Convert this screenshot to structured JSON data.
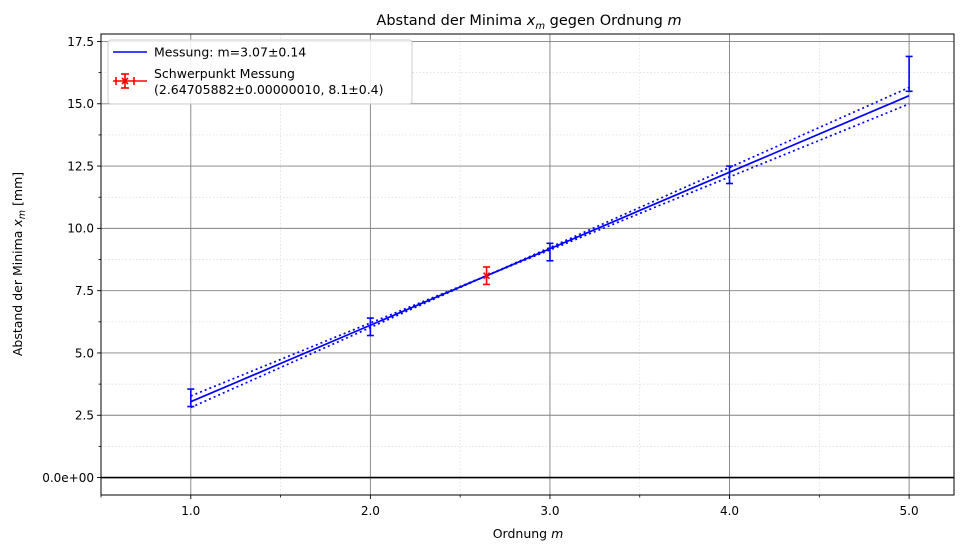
{
  "chart_data": {
    "type": "scatter",
    "title": {
      "main": "Abstand der Minima ",
      "var": "x",
      "sub": "m",
      "rest": " gegen Ordnung ",
      "var2": "m"
    },
    "xlabel": {
      "main": "Ordnung ",
      "var": "m"
    },
    "ylabel": {
      "main": "Abstand der Minima ",
      "var": "x",
      "sub": "m",
      "rest": " [mm]"
    },
    "xlim": [
      0.5,
      5.25
    ],
    "ylim": [
      -0.7,
      17.8
    ],
    "x_ticks": [
      1.0,
      2.0,
      3.0,
      4.0,
      5.0
    ],
    "x_tick_labels": [
      "1.0",
      "2.0",
      "3.0",
      "4.0",
      "5.0"
    ],
    "y_ticks": [
      0,
      2.5,
      5.0,
      7.5,
      10.0,
      12.5,
      15.0,
      17.5
    ],
    "y_tick_labels": [
      "0.0e+00",
      "2.5",
      "5.0",
      "7.5",
      "10.0",
      "12.5",
      "15.0",
      "17.5"
    ],
    "grid": true,
    "legend_position": "upper-left",
    "colors": {
      "fit": "#0000ff",
      "centroid": "#ff0000",
      "grid_major": "#808080",
      "grid_minor": "#d9d9d9",
      "zero_line": "#000000"
    },
    "series": [
      {
        "name": "Messung",
        "points": [
          {
            "x": 1.0,
            "y": 3.2,
            "yerr": 0.35
          },
          {
            "x": 2.0,
            "y": 6.05,
            "yerr": 0.35
          },
          {
            "x": 3.0,
            "y": 9.05,
            "yerr": 0.35
          },
          {
            "x": 4.0,
            "y": 12.15,
            "yerr": 0.35
          },
          {
            "x": 5.0,
            "y": 16.2,
            "yerr": 0.7
          }
        ]
      },
      {
        "name": "Schwerpunkt Messung",
        "points": [
          {
            "x": 2.647,
            "y": 8.1,
            "yerr": 0.35,
            "xerr": 0.0
          }
        ]
      }
    ],
    "fit": {
      "slope": 3.07,
      "intercept": 0.0,
      "slope_upper": 3.21,
      "slope_lower": 2.93,
      "pivot": {
        "x": 2.647,
        "y": 8.1
      }
    },
    "legend": [
      {
        "label": "Messung: m=3.07±0.14"
      },
      {
        "label_line1": "Schwerpunkt Messung",
        "label_line2": "(2.64705882±0.00000010, 8.1±0.4)"
      }
    ]
  }
}
